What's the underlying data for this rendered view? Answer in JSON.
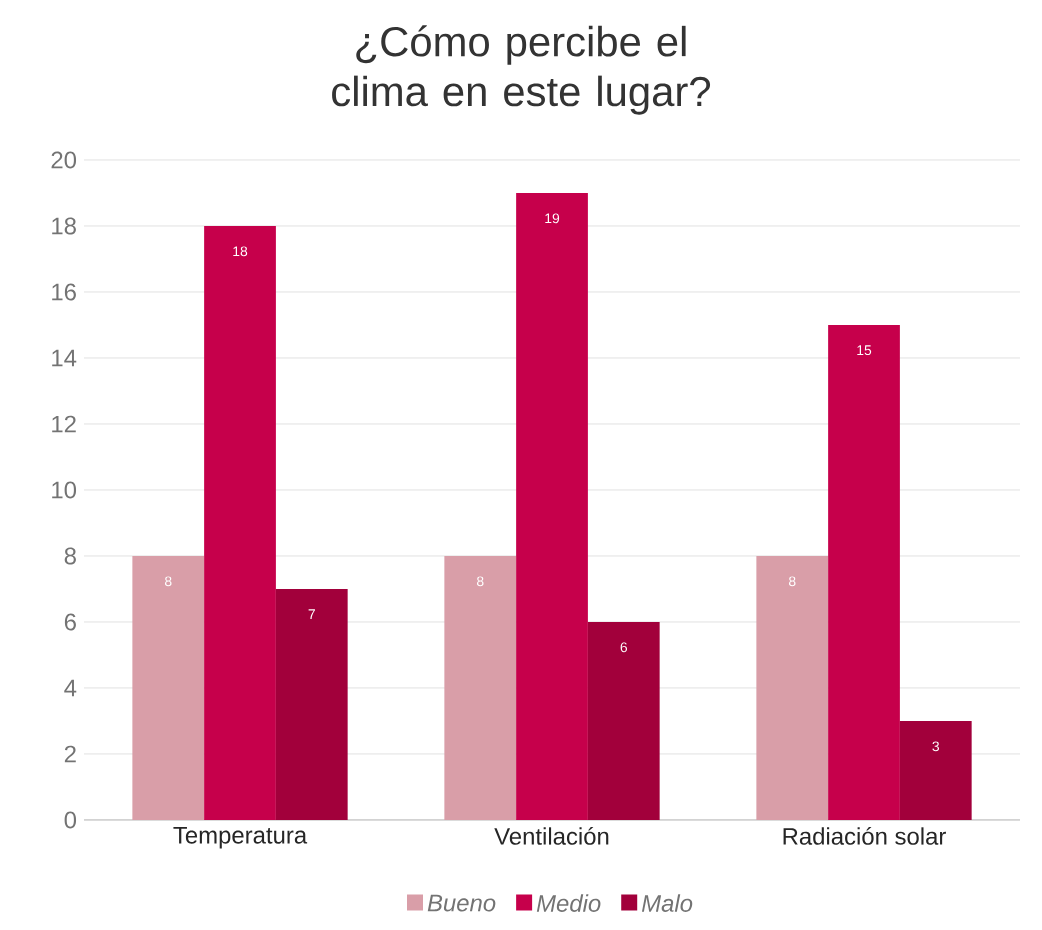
{
  "chart_data": {
    "type": "bar",
    "title": "¿Cómo percibe el clima en este lugar?",
    "categories": [
      "Temperatura",
      "Ventilación",
      "Radiación solar"
    ],
    "series": [
      {
        "name": "Bueno",
        "color": "#d99ea8",
        "values": [
          8,
          8,
          8
        ]
      },
      {
        "name": "Medio",
        "color": "#c6004b",
        "values": [
          18,
          19,
          15
        ]
      },
      {
        "name": "Malo",
        "color": "#a2003b",
        "values": [
          7,
          6,
          3
        ]
      }
    ],
    "ylim": [
      0,
      20
    ],
    "yticks": [
      0,
      2,
      4,
      6,
      8,
      10,
      12,
      14,
      16,
      18,
      20
    ],
    "grid": "y",
    "legend": "bottom",
    "data_labels": true
  }
}
